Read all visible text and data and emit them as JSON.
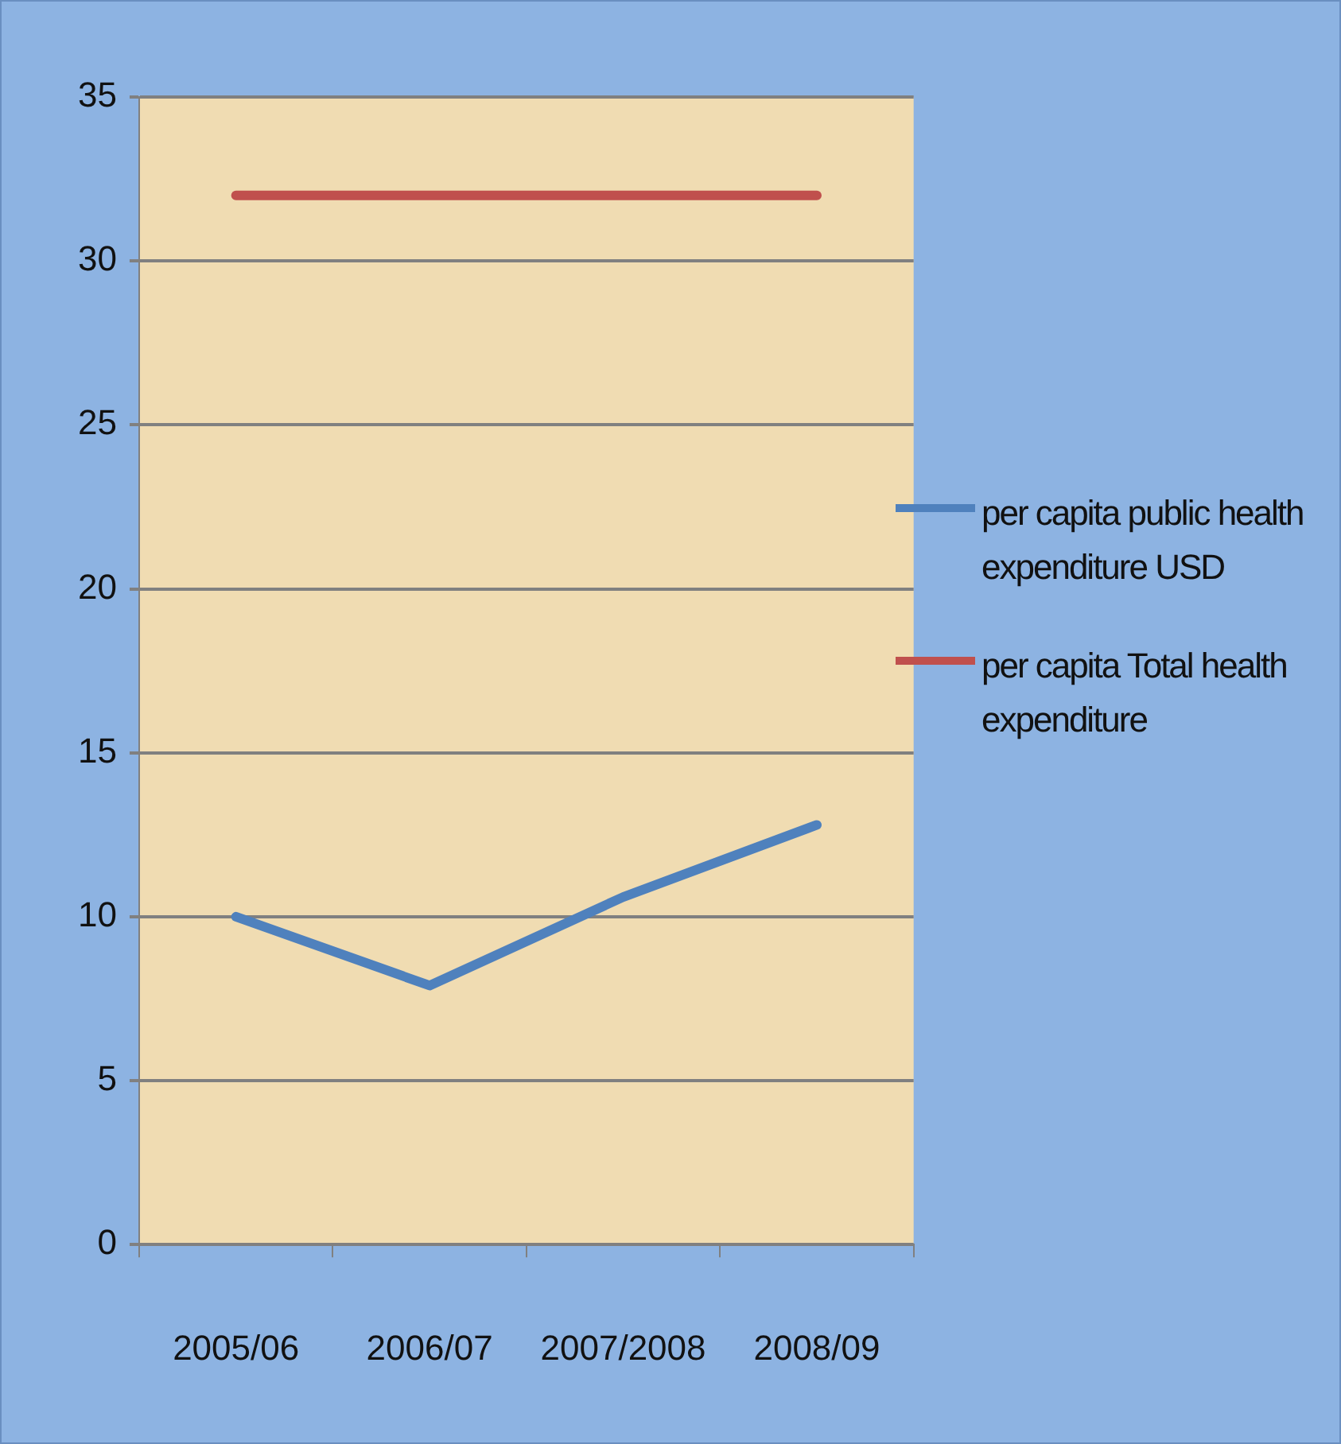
{
  "chart_data": {
    "type": "line",
    "categories": [
      "2005/06",
      "2006/07",
      "2007/2008",
      "2008/09"
    ],
    "series": [
      {
        "name": "per capita public health expenditure USD",
        "color": "#4f81bd",
        "values": [
          10,
          7.9,
          10.6,
          12.8
        ]
      },
      {
        "name": "per capita Total  health expenditure",
        "color": "#c0504d",
        "values": [
          32,
          32,
          32,
          32
        ]
      }
    ],
    "ylim": [
      0,
      35
    ],
    "yticks": [
      0,
      5,
      10,
      15,
      20,
      25,
      30,
      35
    ],
    "grid": "y",
    "legend": "right",
    "marker": "none",
    "line_style": "solid"
  }
}
